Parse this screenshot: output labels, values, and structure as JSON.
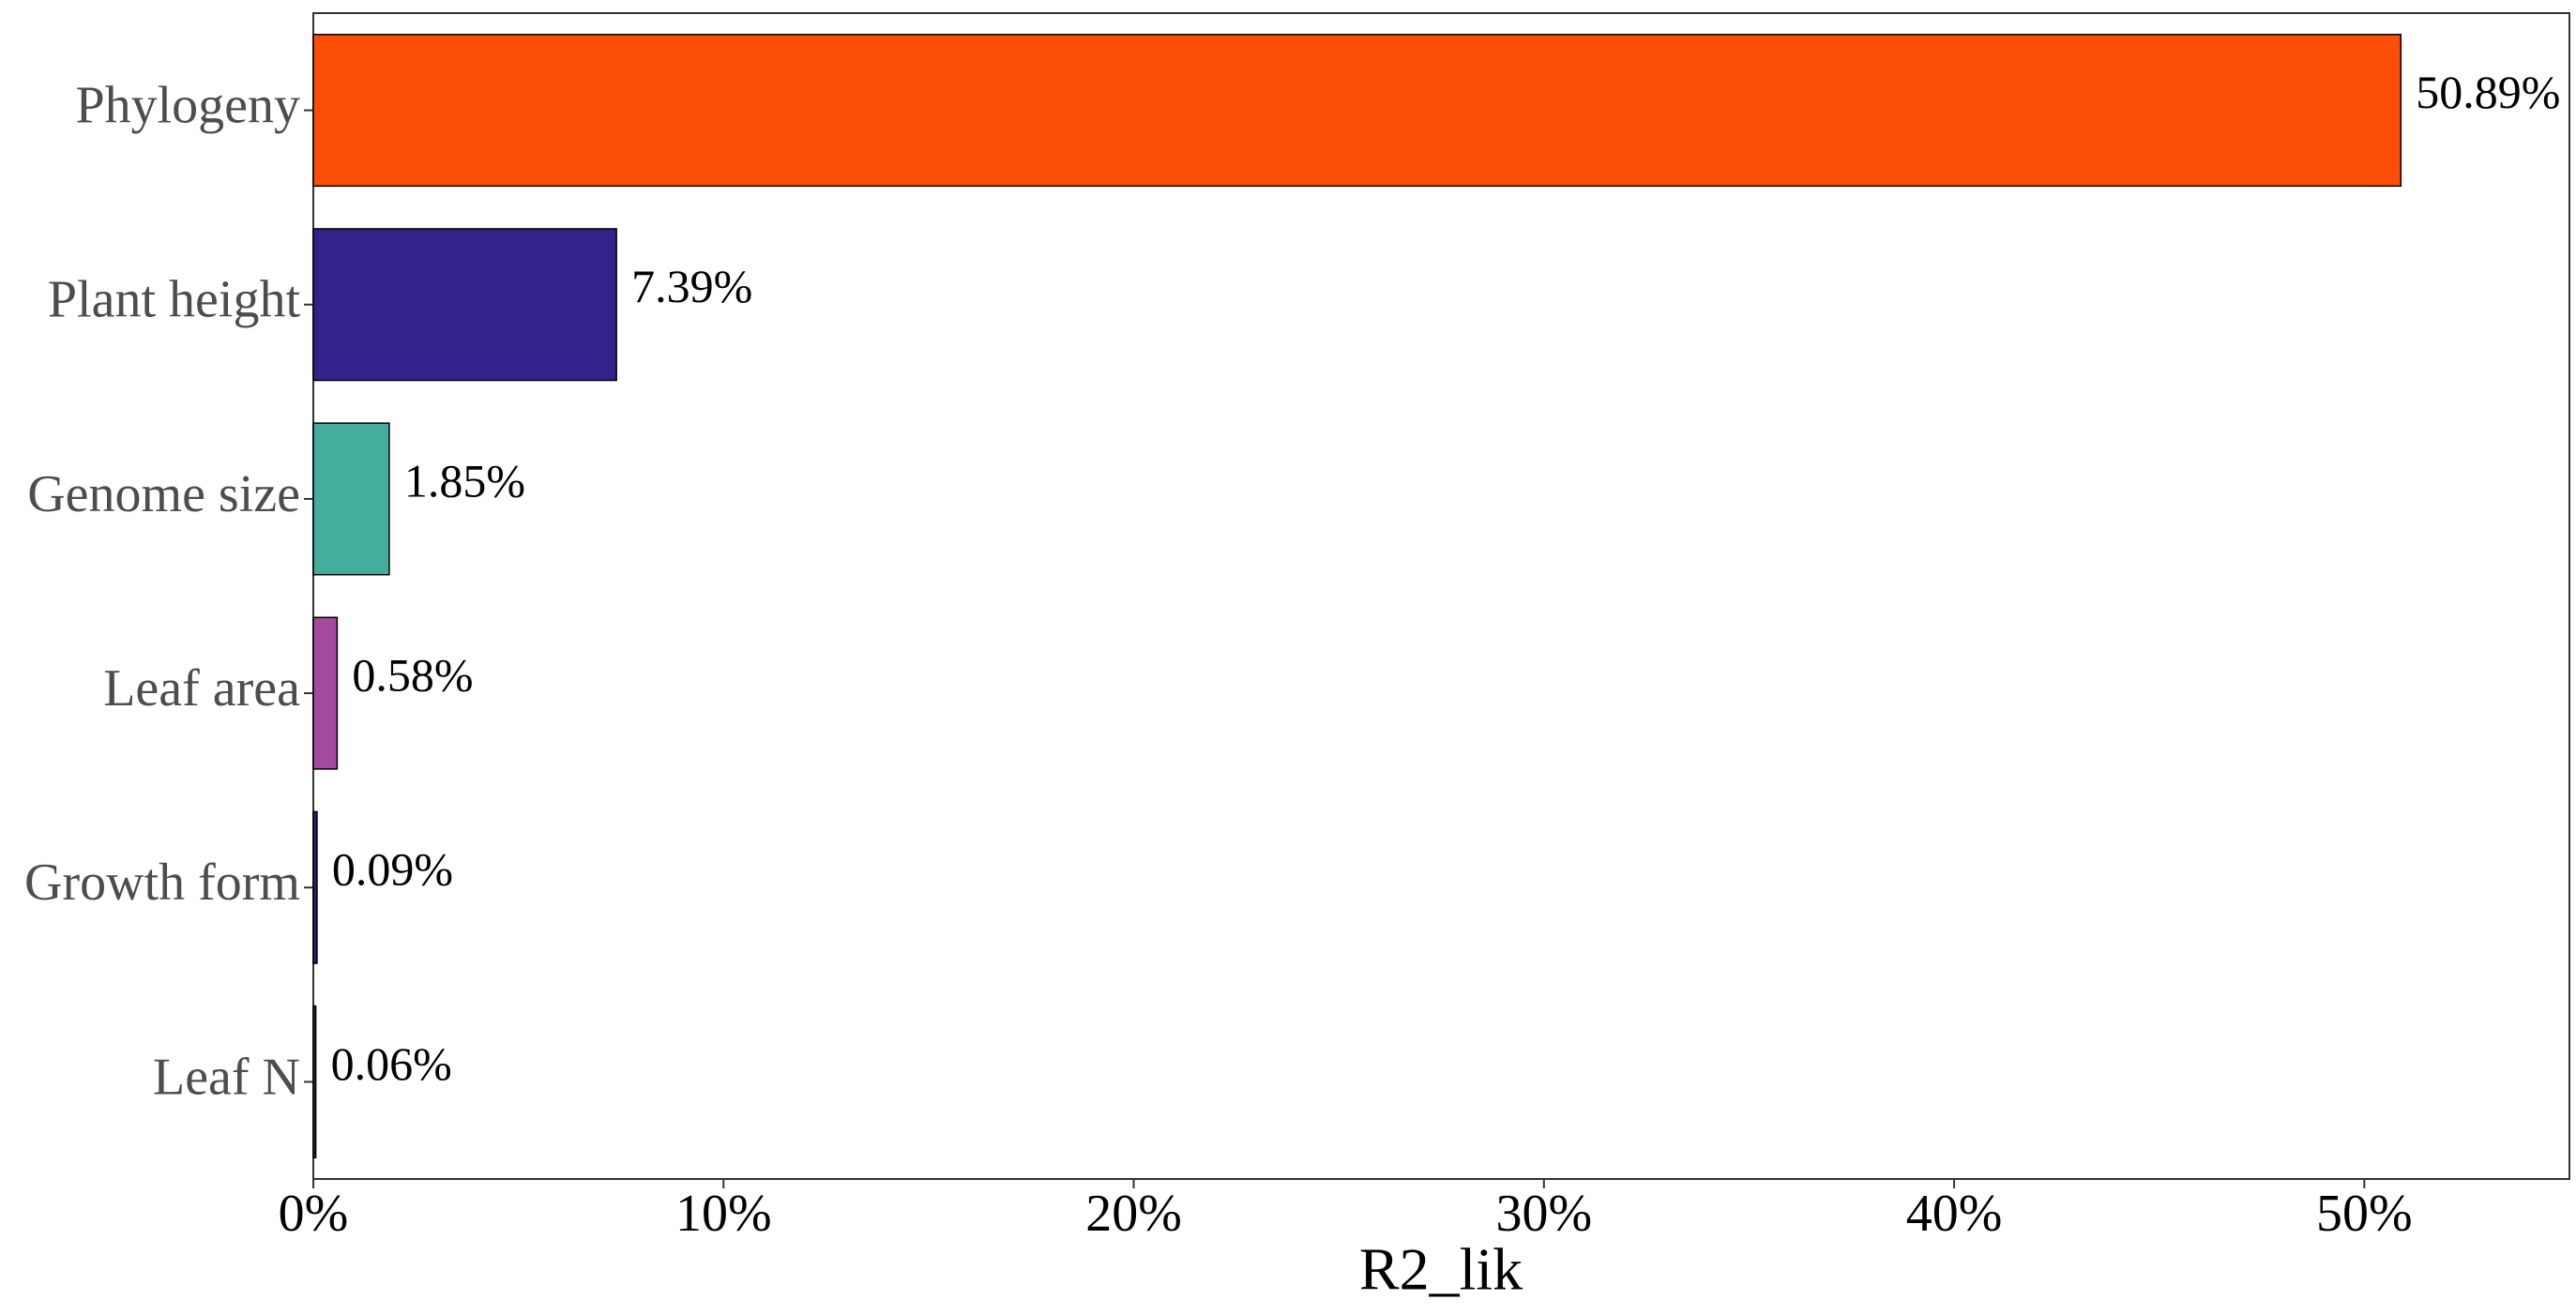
{
  "chart_data": {
    "type": "bar",
    "orientation": "horizontal",
    "categories": [
      "Phylogeny",
      "Plant height",
      "Genome size",
      "Leaf area",
      "Growth form",
      "Leaf N"
    ],
    "values": [
      50.89,
      7.39,
      1.85,
      0.58,
      0.09,
      0.06
    ],
    "value_labels": [
      "50.89%",
      "7.39%",
      "1.85%",
      "0.58%",
      "0.09%",
      "0.06%"
    ],
    "colors": [
      "#fc4e07",
      "#35218a",
      "#45ad9e",
      "#a44a9e",
      "#2a2470",
      "#2f3a2a"
    ],
    "x_label": "R2_lik",
    "xlim": [
      0,
      55
    ],
    "xticks": [
      {
        "value": 0,
        "label": "0%"
      },
      {
        "value": 10,
        "label": "10%"
      },
      {
        "value": 20,
        "label": "20%"
      },
      {
        "value": 30,
        "label": "30%"
      },
      {
        "value": 40,
        "label": "40%"
      },
      {
        "value": 50,
        "label": "50%"
      }
    ],
    "grid": false
  }
}
